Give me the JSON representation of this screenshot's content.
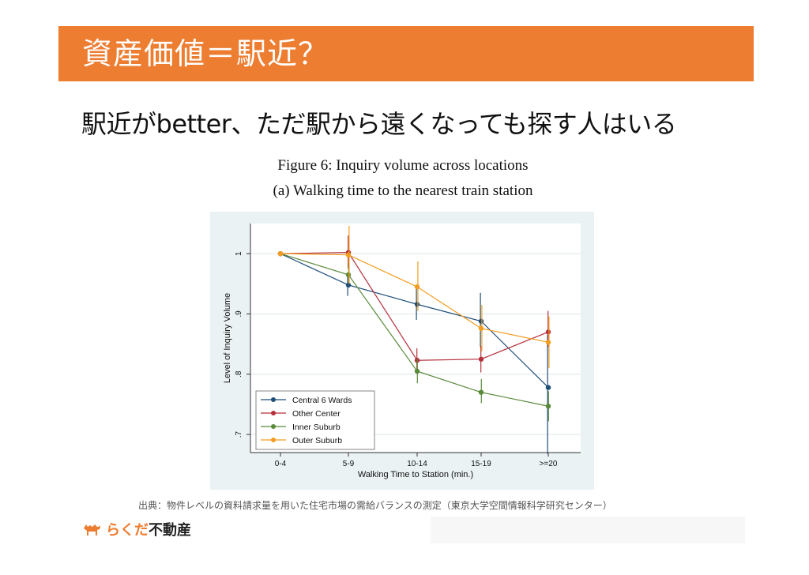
{
  "slide": {
    "title": "資産価値＝駅近？",
    "subtitle": "駅近がbetter、ただ駅から遠くなっても探す人はいる",
    "figure_title": "Figure 6: Inquiry volume across locations",
    "figure_subtitle": "(a)  Walking time to the nearest train station",
    "source": "出典：物件レベルの資料請求量を用いた住宅市場の需給バランスの測定（東京大学空間情報科学研究センター）",
    "logo_kana": "らくだ",
    "logo_kanji": "不動産",
    "logo_icon": "camel-icon",
    "accent_color": "#ed7d31"
  },
  "chart_data": {
    "type": "line",
    "categories": [
      "0-4",
      "5-9",
      "10-14",
      "15-19",
      ">=20"
    ],
    "xlabel": "Walking Time to Station (min.)",
    "ylabel": "Level of Inquiry Volume",
    "ylim": [
      0.67,
      1.05
    ],
    "yticks": [
      ".7",
      ".8",
      ".9",
      "1"
    ],
    "ytick_values": [
      0.7,
      0.8,
      0.9,
      1.0
    ],
    "grid": true,
    "legend_position": "bottom-left",
    "series": [
      {
        "name": "Central 6 Wards",
        "color": "#1f4e79",
        "values": [
          1.0,
          0.948,
          0.916,
          0.888,
          0.778
        ],
        "ci_low": [
          1.0,
          0.93,
          0.89,
          0.845,
          0.668
        ],
        "ci_high": [
          1.0,
          0.968,
          0.942,
          0.935,
          0.865
        ]
      },
      {
        "name": "Other Center",
        "color": "#b5303b",
        "values": [
          1.0,
          1.002,
          0.823,
          0.825,
          0.87
        ],
        "ci_low": [
          1.0,
          0.975,
          0.805,
          0.803,
          0.845
        ],
        "ci_high": [
          1.0,
          1.03,
          0.843,
          0.847,
          0.905
        ]
      },
      {
        "name": "Inner Suburb",
        "color": "#5a8a3a",
        "values": [
          1.0,
          0.965,
          0.805,
          0.77,
          0.747
        ],
        "ci_low": [
          1.0,
          0.95,
          0.785,
          0.752,
          0.722
        ],
        "ci_high": [
          1.0,
          0.985,
          0.825,
          0.792,
          0.772
        ]
      },
      {
        "name": "Outer Suburb",
        "color": "#f39c1f",
        "values": [
          1.0,
          0.998,
          0.945,
          0.876,
          0.853
        ],
        "ci_low": [
          1.0,
          0.95,
          0.905,
          0.838,
          0.81
        ],
        "ci_high": [
          1.0,
          1.046,
          0.987,
          0.915,
          0.896
        ]
      }
    ]
  }
}
